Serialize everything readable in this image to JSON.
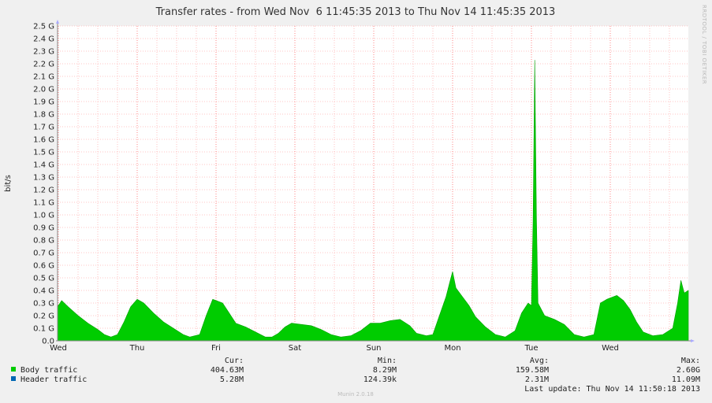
{
  "chart_data": {
    "type": "area",
    "title": "Transfer rates - from Wed Nov  6 11:45:35 2013 to Thu Nov 14 11:45:35 2013",
    "ylabel": "bit/s",
    "ylim": [
      0,
      2.5
    ],
    "y_unit": "G",
    "y_ticks": [
      {
        "value": 0.0,
        "label": "0.0"
      },
      {
        "value": 0.1,
        "label": "0.1 G"
      },
      {
        "value": 0.2,
        "label": "0.2 G"
      },
      {
        "value": 0.3,
        "label": "0.3 G"
      },
      {
        "value": 0.4,
        "label": "0.4 G"
      },
      {
        "value": 0.5,
        "label": "0.5 G"
      },
      {
        "value": 0.6,
        "label": "0.6 G"
      },
      {
        "value": 0.7,
        "label": "0.7 G"
      },
      {
        "value": 0.8,
        "label": "0.8 G"
      },
      {
        "value": 0.9,
        "label": "0.9 G"
      },
      {
        "value": 1.0,
        "label": "1.0 G"
      },
      {
        "value": 1.1,
        "label": "1.1 G"
      },
      {
        "value": 1.2,
        "label": "1.2 G"
      },
      {
        "value": 1.3,
        "label": "1.3 G"
      },
      {
        "value": 1.4,
        "label": "1.4 G"
      },
      {
        "value": 1.5,
        "label": "1.5 G"
      },
      {
        "value": 1.6,
        "label": "1.6 G"
      },
      {
        "value": 1.7,
        "label": "1.7 G"
      },
      {
        "value": 1.8,
        "label": "1.8 G"
      },
      {
        "value": 1.9,
        "label": "1.9 G"
      },
      {
        "value": 2.0,
        "label": "2.0 G"
      },
      {
        "value": 2.1,
        "label": "2.1 G"
      },
      {
        "value": 2.2,
        "label": "2.2 G"
      },
      {
        "value": 2.3,
        "label": "2.3 G"
      },
      {
        "value": 2.4,
        "label": "2.4 G"
      },
      {
        "value": 2.5,
        "label": "2.5 G"
      }
    ],
    "x_range": [
      "2013-11-06 11:45:35",
      "2013-11-14 11:45:35"
    ],
    "x_ticks": [
      {
        "label": "Wed",
        "time": "2013-11-06 12:00"
      },
      {
        "label": "Thu",
        "time": "2013-11-07 12:00"
      },
      {
        "label": "Fri",
        "time": "2013-11-08 12:00"
      },
      {
        "label": "Sat",
        "time": "2013-11-09 12:00"
      },
      {
        "label": "Sun",
        "time": "2013-11-10 12:00"
      },
      {
        "label": "Mon",
        "time": "2013-11-11 12:00"
      },
      {
        "label": "Tue",
        "time": "2013-11-12 12:00"
      },
      {
        "label": "Wed",
        "time": "2013-11-13 12:00"
      }
    ],
    "grid": true,
    "series": [
      {
        "name": "Body traffic",
        "color": "#00cc00",
        "points": [
          [
            "2013-11-06 11:45",
            0.27
          ],
          [
            "2013-11-06 13:00",
            0.32
          ],
          [
            "2013-11-06 15:00",
            0.27
          ],
          [
            "2013-11-06 18:00",
            0.2
          ],
          [
            "2013-11-06 21:00",
            0.14
          ],
          [
            "2013-11-07 00:00",
            0.09
          ],
          [
            "2013-11-07 02:00",
            0.05
          ],
          [
            "2013-11-07 04:00",
            0.03
          ],
          [
            "2013-11-07 06:00",
            0.05
          ],
          [
            "2013-11-07 08:00",
            0.15
          ],
          [
            "2013-11-07 10:00",
            0.27
          ],
          [
            "2013-11-07 12:00",
            0.33
          ],
          [
            "2013-11-07 14:00",
            0.3
          ],
          [
            "2013-11-07 17:00",
            0.22
          ],
          [
            "2013-11-07 20:00",
            0.15
          ],
          [
            "2013-11-07 23:00",
            0.1
          ],
          [
            "2013-11-08 02:00",
            0.05
          ],
          [
            "2013-11-08 04:00",
            0.03
          ],
          [
            "2013-11-08 07:00",
            0.05
          ],
          [
            "2013-11-08 09:00",
            0.2
          ],
          [
            "2013-11-08 11:00",
            0.33
          ],
          [
            "2013-11-08 14:00",
            0.3
          ],
          [
            "2013-11-08 16:00",
            0.22
          ],
          [
            "2013-11-08 18:00",
            0.14
          ],
          [
            "2013-11-08 21:00",
            0.11
          ],
          [
            "2013-11-09 00:00",
            0.07
          ],
          [
            "2013-11-09 03:00",
            0.03
          ],
          [
            "2013-11-09 05:00",
            0.03
          ],
          [
            "2013-11-09 07:00",
            0.06
          ],
          [
            "2013-11-09 09:00",
            0.11
          ],
          [
            "2013-11-09 11:00",
            0.14
          ],
          [
            "2013-11-09 14:00",
            0.13
          ],
          [
            "2013-11-09 17:00",
            0.12
          ],
          [
            "2013-11-09 20:00",
            0.09
          ],
          [
            "2013-11-09 23:00",
            0.05
          ],
          [
            "2013-11-10 02:00",
            0.03
          ],
          [
            "2013-11-10 05:00",
            0.04
          ],
          [
            "2013-11-10 08:00",
            0.08
          ],
          [
            "2013-11-10 11:00",
            0.14
          ],
          [
            "2013-11-10 14:00",
            0.14
          ],
          [
            "2013-11-10 17:00",
            0.16
          ],
          [
            "2013-11-10 20:00",
            0.17
          ],
          [
            "2013-11-10 23:00",
            0.12
          ],
          [
            "2013-11-11 01:00",
            0.06
          ],
          [
            "2013-11-11 04:00",
            0.04
          ],
          [
            "2013-11-11 06:00",
            0.05
          ],
          [
            "2013-11-11 08:00",
            0.2
          ],
          [
            "2013-11-11 10:00",
            0.35
          ],
          [
            "2013-11-11 11:00",
            0.45
          ],
          [
            "2013-11-11 12:00",
            0.55
          ],
          [
            "2013-11-11 13:00",
            0.42
          ],
          [
            "2013-11-11 15:00",
            0.35
          ],
          [
            "2013-11-11 17:00",
            0.28
          ],
          [
            "2013-11-11 19:00",
            0.19
          ],
          [
            "2013-11-11 22:00",
            0.11
          ],
          [
            "2013-11-12 01:00",
            0.05
          ],
          [
            "2013-11-12 04:00",
            0.03
          ],
          [
            "2013-11-12 07:00",
            0.08
          ],
          [
            "2013-11-12 09:00",
            0.22
          ],
          [
            "2013-11-12 11:00",
            0.3
          ],
          [
            "2013-11-12 12:00",
            0.28
          ],
          [
            "2013-11-12 12:30",
            0.95
          ],
          [
            "2013-11-12 13:00",
            2.23
          ],
          [
            "2013-11-12 13:30",
            1.0
          ],
          [
            "2013-11-12 14:00",
            0.3
          ],
          [
            "2013-11-12 16:00",
            0.2
          ],
          [
            "2013-11-12 19:00",
            0.17
          ],
          [
            "2013-11-12 22:00",
            0.13
          ],
          [
            "2013-11-13 01:00",
            0.05
          ],
          [
            "2013-11-13 04:00",
            0.03
          ],
          [
            "2013-11-13 07:00",
            0.05
          ],
          [
            "2013-11-13 09:00",
            0.3
          ],
          [
            "2013-11-13 11:00",
            0.33
          ],
          [
            "2013-11-13 14:00",
            0.36
          ],
          [
            "2013-11-13 16:00",
            0.32
          ],
          [
            "2013-11-13 18:00",
            0.25
          ],
          [
            "2013-11-13 20:00",
            0.15
          ],
          [
            "2013-11-13 22:00",
            0.07
          ],
          [
            "2013-11-14 01:00",
            0.04
          ],
          [
            "2013-11-14 04:00",
            0.05
          ],
          [
            "2013-11-14 07:00",
            0.1
          ],
          [
            "2013-11-14 08:30",
            0.3
          ],
          [
            "2013-11-14 09:30",
            0.48
          ],
          [
            "2013-11-14 10:30",
            0.38
          ],
          [
            "2013-11-14 11:45",
            0.4
          ]
        ]
      },
      {
        "name": "Header traffic",
        "color": "#0066b3",
        "points": []
      }
    ]
  },
  "legend": {
    "headers": {
      "cur": "Cur:",
      "min": "Min:",
      "avg": "Avg:",
      "max": "Max:"
    },
    "rows": [
      {
        "name": "Body traffic",
        "color": "#00cc00",
        "cur": "404.63M",
        "min": "8.29M",
        "avg": "159.58M",
        "max": "2.60G"
      },
      {
        "name": "Header traffic",
        "color": "#0066b3",
        "cur": "5.28M",
        "min": "124.39k",
        "avg": "2.31M",
        "max": "11.09M"
      }
    ],
    "last_update": "Last update: Thu Nov 14 11:50:18 2013"
  },
  "side_watermark": "RRDTOOL / TOBI OETIKER",
  "footer": "Munin 2.0.18",
  "colors": {
    "background": "#f0f0f0",
    "plot_background": "#ffffff",
    "grid_minor": "#ffb4b4",
    "grid_major": "#ff8080",
    "axis": "#888888"
  }
}
